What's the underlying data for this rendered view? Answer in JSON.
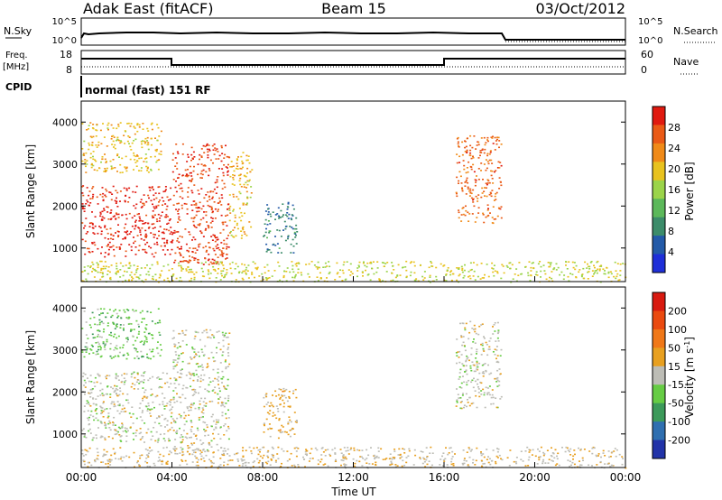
{
  "header": {
    "radar": "Adak East (fitACF)",
    "beam": "Beam 15",
    "date": "03/Oct/2012"
  },
  "colors": {
    "power_scale": [
      "#1f2fd8",
      "#235aa8",
      "#3c8c6a",
      "#5cb85a",
      "#9bd44a",
      "#e8c21e",
      "#f08a18",
      "#ea5a16",
      "#e01a10"
    ],
    "velocity_scale": [
      "#2233a8",
      "#2f6fb0",
      "#3c9a5a",
      "#66cc44",
      "#bdbdb6",
      "#e8a020",
      "#f07818",
      "#ea4a10",
      "#d81a10"
    ],
    "ground_scatter": "#bdbdb6"
  },
  "panels": {
    "sky_noise": {
      "left_label": "N.Sky",
      "right_label": "N.Search",
      "left_ticks": [
        "10^5",
        "10^0"
      ],
      "right_ticks": [
        "10^5",
        "10^0"
      ]
    },
    "frequency": {
      "left_label": "Freq.",
      "left_unit": "[MHz]",
      "right_label": "Nave",
      "left_ticks": [
        "18",
        "8"
      ],
      "right_ticks": [
        "60",
        "0"
      ]
    },
    "cpid": {
      "label": "CPID",
      "text": "normal (fast) 151 RF"
    }
  },
  "chart_data": [
    {
      "type": "heatmap",
      "name": "power",
      "xlabel": "",
      "ylabel": "Slant Range [km]",
      "x_ticks": [
        "00:00",
        "04:00",
        "08:00",
        "12:00",
        "16:00",
        "20:00",
        "00:00"
      ],
      "x_range_hours": [
        0,
        24
      ],
      "y_ticks": [
        1000,
        2000,
        3000,
        4000
      ],
      "ylim": [
        200,
        4500
      ],
      "colorbar": {
        "label": "Power [dB]",
        "tick_labels": [
          "4",
          "8",
          "12",
          "16",
          "20",
          "24",
          "28"
        ],
        "range": [
          0,
          32
        ]
      },
      "regions": [
        {
          "t": [
            0.0,
            4.0
          ],
          "r": [
            800,
            2500
          ],
          "value": 30
        },
        {
          "t": [
            0.0,
            3.5
          ],
          "r": [
            2800,
            4000
          ],
          "value": 20
        },
        {
          "t": [
            4.0,
            6.5
          ],
          "r": [
            600,
            3500
          ],
          "value": 28
        },
        {
          "t": [
            6.5,
            7.5
          ],
          "r": [
            1200,
            3300
          ],
          "value": 20
        },
        {
          "t": [
            8.0,
            9.5
          ],
          "r": [
            900,
            2100
          ],
          "value": 8
        },
        {
          "t": [
            16.5,
            18.5
          ],
          "r": [
            1600,
            3700
          ],
          "value": 26
        },
        {
          "t": [
            0.0,
            24.0
          ],
          "r": [
            200,
            700
          ],
          "value": 18
        }
      ]
    },
    {
      "type": "heatmap",
      "name": "velocity",
      "xlabel": "Time UT",
      "ylabel": "Slant Range [km]",
      "x_ticks": [
        "00:00",
        "04:00",
        "08:00",
        "12:00",
        "16:00",
        "20:00",
        "00:00"
      ],
      "x_range_hours": [
        0,
        24
      ],
      "y_ticks": [
        1000,
        2000,
        3000,
        4000
      ],
      "ylim": [
        200,
        4500
      ],
      "colorbar": {
        "label": "Velocity [m s^-1]",
        "tick_labels": [
          "200",
          "100",
          "50",
          "15",
          "-15",
          "-50",
          "-100",
          "-200"
        ],
        "range": [
          -250,
          250
        ]
      },
      "regions": [
        {
          "t": [
            0.0,
            4.0
          ],
          "r": [
            800,
            2500
          ],
          "value": 0
        },
        {
          "t": [
            0.0,
            3.5
          ],
          "r": [
            2800,
            4000
          ],
          "value": -60
        },
        {
          "t": [
            4.0,
            6.5
          ],
          "r": [
            600,
            3500
          ],
          "value": 0
        },
        {
          "t": [
            8.0,
            9.5
          ],
          "r": [
            900,
            2100
          ],
          "value": 40
        },
        {
          "t": [
            16.5,
            18.5
          ],
          "r": [
            1600,
            3700
          ],
          "value": 0
        },
        {
          "t": [
            0.0,
            24.0
          ],
          "r": [
            200,
            700
          ],
          "value": 20
        }
      ]
    }
  ]
}
